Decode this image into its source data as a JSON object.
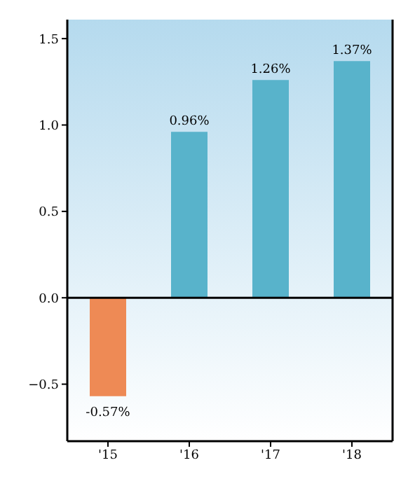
{
  "chart_data": {
    "type": "bar",
    "categories": [
      "'15",
      "'16",
      "'17",
      "'18"
    ],
    "values": [
      -0.57,
      0.96,
      1.26,
      1.37
    ],
    "colors": [
      "#ee8a55",
      "#58b3cb",
      "#58b3cb",
      "#58b3cb"
    ],
    "value_labels": [
      "-0.57%",
      "0.96%",
      "1.26%",
      "1.37%"
    ],
    "ylim": [
      -0.83,
      1.61
    ],
    "yticks": [
      -0.5,
      {
        "value": 0,
        "label": "0.0"
      },
      0.5,
      {
        "value": 1,
        "label": "1.0"
      },
      1.5
    ],
    "ref_lines": [
      {
        "axis": "y",
        "value": 0,
        "color": "#000000"
      }
    ],
    "grid": false
  }
}
